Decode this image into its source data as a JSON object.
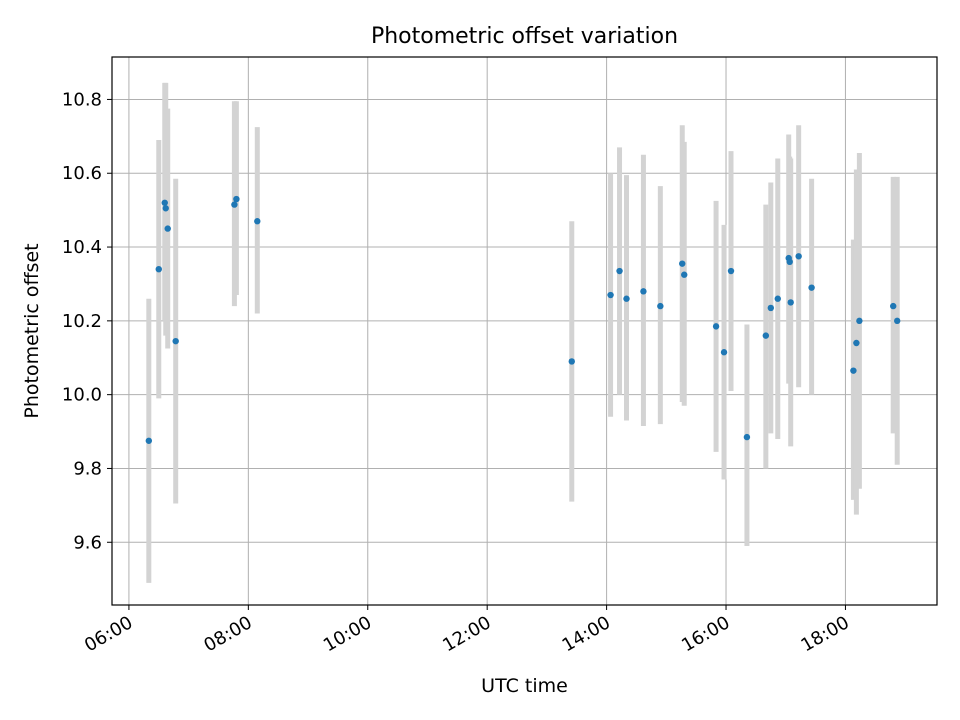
{
  "chart_data": {
    "type": "scatter",
    "title": "Photometric offset variation",
    "xlabel": "UTC time",
    "ylabel": "Photometric offset",
    "x_is_time": true,
    "xlim": [
      "05:43",
      "19:32"
    ],
    "ylim": [
      9.43,
      10.915
    ],
    "x_ticks": [
      "06:00",
      "08:00",
      "10:00",
      "12:00",
      "14:00",
      "16:00",
      "18:00"
    ],
    "y_ticks": [
      "9.6",
      "9.8",
      "10.0",
      "10.2",
      "10.4",
      "10.6",
      "10.8"
    ],
    "grid": true,
    "point_color": "#1f77b4",
    "errorbar_color": "#d3d3d3",
    "points": [
      {
        "time": "06:20",
        "value": 9.875,
        "low": 9.49,
        "high": 10.26
      },
      {
        "time": "06:30",
        "value": 10.34,
        "low": 9.99,
        "high": 10.69
      },
      {
        "time": "06:36",
        "value": 10.52,
        "low": 10.2,
        "high": 10.845
      },
      {
        "time": "06:37",
        "value": 10.505,
        "low": 10.16,
        "high": 10.845
      },
      {
        "time": "06:39",
        "value": 10.45,
        "low": 10.125,
        "high": 10.775
      },
      {
        "time": "06:47",
        "value": 10.145,
        "low": 9.705,
        "high": 10.585
      },
      {
        "time": "07:46",
        "value": 10.515,
        "low": 10.24,
        "high": 10.795
      },
      {
        "time": "07:48",
        "value": 10.53,
        "low": 10.27,
        "high": 10.795
      },
      {
        "time": "08:09",
        "value": 10.47,
        "low": 10.22,
        "high": 10.725
      },
      {
        "time": "13:25",
        "value": 10.09,
        "low": 9.71,
        "high": 10.47
      },
      {
        "time": "14:04",
        "value": 10.27,
        "low": 9.94,
        "high": 10.6
      },
      {
        "time": "14:13",
        "value": 10.335,
        "low": 10.0,
        "high": 10.67
      },
      {
        "time": "14:20",
        "value": 10.26,
        "low": 9.93,
        "high": 10.595
      },
      {
        "time": "14:37",
        "value": 10.28,
        "low": 9.915,
        "high": 10.65
      },
      {
        "time": "14:54",
        "value": 10.24,
        "low": 9.92,
        "high": 10.565
      },
      {
        "time": "15:16",
        "value": 10.355,
        "low": 9.98,
        "high": 10.73
      },
      {
        "time": "15:18",
        "value": 10.325,
        "low": 9.97,
        "high": 10.685
      },
      {
        "time": "15:50",
        "value": 10.185,
        "low": 9.845,
        "high": 10.525
      },
      {
        "time": "15:58",
        "value": 10.115,
        "low": 9.77,
        "high": 10.46
      },
      {
        "time": "16:05",
        "value": 10.335,
        "low": 10.01,
        "high": 10.66
      },
      {
        "time": "16:21",
        "value": 9.885,
        "low": 9.59,
        "high": 10.19
      },
      {
        "time": "16:40",
        "value": 10.16,
        "low": 9.8,
        "high": 10.515
      },
      {
        "time": "16:45",
        "value": 10.235,
        "low": 9.895,
        "high": 10.575
      },
      {
        "time": "16:52",
        "value": 10.26,
        "low": 9.88,
        "high": 10.64
      },
      {
        "time": "17:03",
        "value": 10.37,
        "low": 10.03,
        "high": 10.705
      },
      {
        "time": "17:04",
        "value": 10.36,
        "low": 10.07,
        "high": 10.645
      },
      {
        "time": "17:05",
        "value": 10.25,
        "low": 9.86,
        "high": 10.64
      },
      {
        "time": "17:13",
        "value": 10.375,
        "low": 10.02,
        "high": 10.73
      },
      {
        "time": "17:26",
        "value": 10.29,
        "low": 10.0,
        "high": 10.585
      },
      {
        "time": "18:08",
        "value": 10.065,
        "low": 9.715,
        "high": 10.42
      },
      {
        "time": "18:11",
        "value": 10.14,
        "low": 9.675,
        "high": 10.61
      },
      {
        "time": "18:14",
        "value": 10.2,
        "low": 9.745,
        "high": 10.655
      },
      {
        "time": "18:48",
        "value": 10.24,
        "low": 9.895,
        "high": 10.59
      },
      {
        "time": "18:52",
        "value": 10.2,
        "low": 9.81,
        "high": 10.59
      }
    ]
  }
}
